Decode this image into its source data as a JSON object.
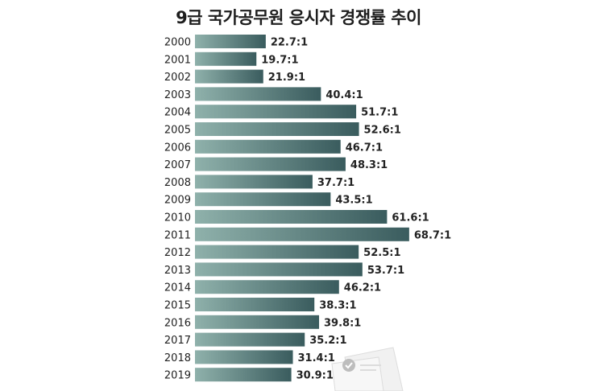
{
  "chart_data": {
    "type": "bar",
    "orientation": "horizontal",
    "title": "9급 국가공무원 응시자 경쟁률 추이",
    "categories": [
      "2000",
      "2001",
      "2002",
      "2003",
      "2004",
      "2005",
      "2006",
      "2007",
      "2008",
      "2009",
      "2010",
      "2011",
      "2012",
      "2013",
      "2014",
      "2015",
      "2016",
      "2017",
      "2018",
      "2019"
    ],
    "values": [
      22.7,
      19.7,
      21.9,
      40.4,
      51.7,
      52.6,
      46.7,
      48.3,
      37.7,
      43.5,
      61.6,
      68.7,
      52.5,
      53.7,
      46.2,
      38.3,
      39.8,
      35.2,
      31.4,
      30.9
    ],
    "labels": [
      "22.7:1",
      "19.7:1",
      "21.9:1",
      "40.4:1",
      "51.7:1",
      "52.6:1",
      "46.7:1",
      "48.3:1",
      "37.7:1",
      "43.5:1",
      "61.6:1",
      "68.7:1",
      "52.5:1",
      "53.7:1",
      "46.2:1",
      "38.3:1",
      "39.8:1",
      "35.2:1",
      "31.4:1",
      "30.9:1"
    ],
    "xlabel": "",
    "ylabel": "",
    "xlim": [
      0,
      70
    ],
    "grid": false,
    "legend": "none",
    "colors": {
      "bar_left": "#8fb1ab",
      "bar_right": "#3a5c5e"
    }
  }
}
